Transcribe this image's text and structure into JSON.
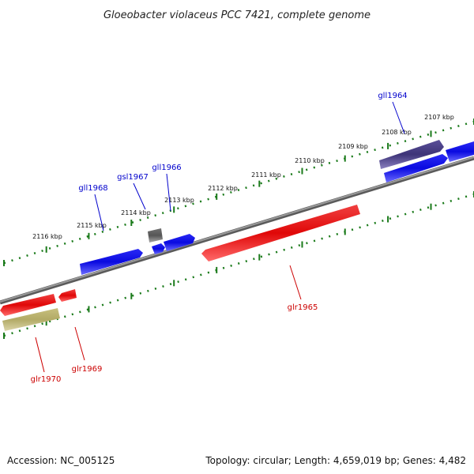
{
  "title": "Gloeobacter violaceus PCC 7421, complete genome",
  "footer": {
    "accession": "Accession: NC_005125",
    "summary": "Topology: circular; Length: 4,659,019 bp; Genes: 4,482"
  },
  "ticks": [
    "2116 kbp",
    "2115 kbp",
    "2114 kbp",
    "2113 kbp",
    "2112 kbp",
    "2111 kbp",
    "2110 kbp",
    "2109 kbp",
    "2108 kbp",
    "2107 kbp"
  ],
  "genes": [
    {
      "label": "gll1964",
      "strand": "minus",
      "color": "#4a3f85"
    },
    {
      "label": "glr1965",
      "strand": "plus",
      "color": "#e01010"
    },
    {
      "label": "gll1966",
      "strand": "minus",
      "color": "#1010e0"
    },
    {
      "label": "gsl1967",
      "strand": "minus",
      "color": "#606060"
    },
    {
      "label": "gll1968",
      "strand": "minus",
      "color": "#1010e0"
    },
    {
      "label": "glr1969",
      "strand": "plus",
      "color": "#e01010"
    },
    {
      "label": "glr1970",
      "strand": "plus",
      "color": "#b8b070"
    }
  ],
  "colors": {
    "backbone": "#808080",
    "tick_marks": "#1a7a1a",
    "minus_label": "#0000cc",
    "plus_label": "#cc0000"
  }
}
